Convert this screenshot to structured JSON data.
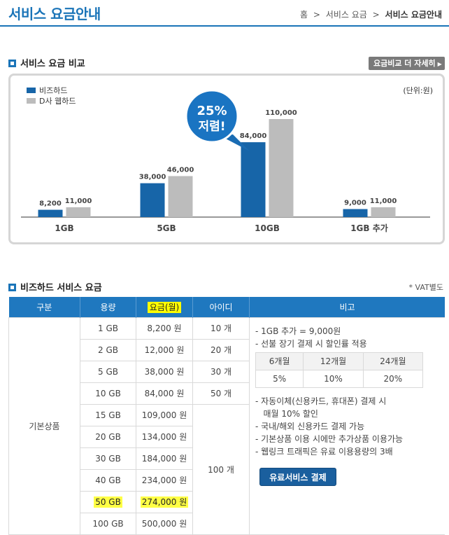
{
  "header": {
    "title": "서비스 요금안내",
    "breadcrumb": [
      "홈",
      "서비스 요금",
      "서비스 요금안내"
    ],
    "separator": ">"
  },
  "compare": {
    "section_title": "서비스 요금 비교",
    "detail_button": "요금비교 더 자세히",
    "unit": "(단위:원)",
    "badge_line1": "25%",
    "badge_line2": "저렴!"
  },
  "chart_data": {
    "type": "bar",
    "categories": [
      "1GB",
      "5GB",
      "10GB",
      "1GB 추가"
    ],
    "series": [
      {
        "name": "비즈하드",
        "values": [
          8200,
          38000,
          84000,
          9000
        ],
        "labels": [
          "8,200",
          "38,000",
          "84,000",
          "9,000"
        ],
        "color": "#1765a8"
      },
      {
        "name": "D사 웹하드",
        "values": [
          11000,
          46000,
          110000,
          11000
        ],
        "labels": [
          "11,000",
          "46,000",
          "110,000",
          "11,000"
        ],
        "color": "#bcbcbc"
      }
    ],
    "ylim": [
      0,
      110000
    ]
  },
  "pricing": {
    "section_title": "비즈하드 서비스 요금",
    "vat_note": "* VAT별도",
    "columns": [
      "구분",
      "용량",
      "요금(월)",
      "아이디",
      "비고"
    ],
    "category": "기본상품",
    "rows": [
      {
        "capacity": "1 GB",
        "price": "8,200 원",
        "ids": "10 개"
      },
      {
        "capacity": "2 GB",
        "price": "12,000 원",
        "ids": "20 개"
      },
      {
        "capacity": "5 GB",
        "price": "38,000 원",
        "ids": "30 개"
      },
      {
        "capacity": "10 GB",
        "price": "84,000 원",
        "ids": "50 개"
      },
      {
        "capacity": "15 GB",
        "price": "109,000 원"
      },
      {
        "capacity": "20 GB",
        "price": "134,000 원"
      },
      {
        "capacity": "30 GB",
        "price": "184,000 원"
      },
      {
        "capacity": "40 GB",
        "price": "234,000 원"
      },
      {
        "capacity": "50 GB",
        "price": "274,000 원"
      },
      {
        "capacity": "100 GB",
        "price": "500,000 원"
      }
    ],
    "shared_ids": "100 개",
    "notes_top": [
      "- 1GB 추가 = 9,000원",
      "- 선불 장기 결제 시 할인률 적용"
    ],
    "discount": {
      "periods": [
        "6개월",
        "12개월",
        "24개월"
      ],
      "rates": [
        "5%",
        "10%",
        "20%"
      ]
    },
    "notes_bottom": [
      "- 자동이체(신용카드, 휴대폰) 결제 시",
      "   매월 10% 할인",
      "- 국내/해외 신용카드 결제 가능",
      "- 기본상품 이용 시에만 추가상품 이용가능",
      "- 웹링크 트래픽은 유료 이용용량의 3배"
    ],
    "pay_button": "유료서비스 결제"
  }
}
